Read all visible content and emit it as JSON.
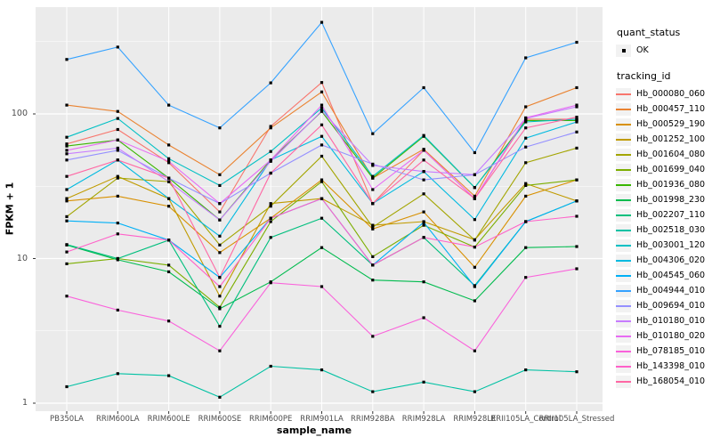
{
  "figure": {
    "background": "#FFFFFF",
    "panel_bg": "#EBEBEB",
    "grid_color": "#FFFFFF",
    "axis_text_color": "#4D4D4D",
    "tick_mark_color": "#333333",
    "point_color": "#000000"
  },
  "axes": {
    "x_title": "sample_name",
    "y_title": "FPKM + 1",
    "y_tick_labels": [
      "1",
      "10",
      "100"
    ],
    "y_tick_values": [
      1,
      10,
      100
    ],
    "y_minor_values": [
      3.1623,
      31.623,
      316.23
    ]
  },
  "legend": {
    "quant_title": "quant_status",
    "quant_item_label": "OK",
    "tracking_title": "tracking_id",
    "key_fill": "#F2F2F2"
  },
  "chart_data": {
    "type": "line",
    "title": "",
    "xlabel": "sample_name",
    "ylabel": "FPKM + 1",
    "y_scale": "log10",
    "ylim": [
      0.92,
      550
    ],
    "grid": true,
    "legend_position": "right",
    "point_shape": "small black square (quant_status = OK at every point)",
    "categories": [
      "PB350LA",
      "RRIM600LA",
      "RRIM600LE",
      "RRIM600SE",
      "RRIM600PE",
      "RRIM901LA",
      "RRIM928BA",
      "RRIM928LA",
      "RRIM928LE",
      "RRII105LA_Control",
      "RRII105LA_Stressed"
    ],
    "series": [
      {
        "name": "Hb_000080_060",
        "color": "#F8766D",
        "values": [
          62,
          78,
          46,
          21,
          82,
          165,
          24,
          56,
          26,
          92,
          92
        ]
      },
      {
        "name": "Hb_000457_110",
        "color": "#EA8331",
        "values": [
          115,
          104,
          61,
          38,
          80,
          142,
          36,
          57,
          27,
          112,
          152
        ]
      },
      {
        "name": "Hb_000529_190",
        "color": "#D89000",
        "values": [
          25,
          27,
          23,
          11,
          19,
          35,
          16,
          21,
          8.7,
          27,
          35
        ]
      },
      {
        "name": "Hb_001252_100",
        "color": "#C09B00",
        "values": [
          26,
          37,
          26,
          5.5,
          24,
          26,
          17,
          18,
          13.5,
          33,
          25
        ]
      },
      {
        "name": "Hb_001604_080",
        "color": "#A3A500",
        "values": [
          19.5,
          36,
          34,
          12.4,
          23,
          51,
          16.5,
          28,
          13.4,
          46,
          58
        ]
      },
      {
        "name": "Hb_001699_040",
        "color": "#7CAE00",
        "values": [
          9.2,
          10,
          9.0,
          4.6,
          18,
          34,
          10.3,
          17,
          12,
          32,
          35
        ]
      },
      {
        "name": "Hb_001936_080",
        "color": "#39B600",
        "values": [
          60,
          66,
          36,
          18.5,
          48,
          104,
          36,
          70,
          31,
          90,
          90
        ]
      },
      {
        "name": "Hb_001998_230",
        "color": "#00BB4E",
        "values": [
          12.4,
          9.8,
          8.1,
          4.5,
          6.9,
          11.9,
          7.1,
          6.9,
          5.1,
          11.9,
          12.1
        ]
      },
      {
        "name": "Hb_002207_110",
        "color": "#00BF7D",
        "values": [
          12.5,
          10,
          13.4,
          3.4,
          14,
          19,
          9.0,
          14,
          6.5,
          18,
          25
        ]
      },
      {
        "name": "Hb_002518_030",
        "color": "#00C1A3",
        "values": [
          1.3,
          1.6,
          1.55,
          1.1,
          1.8,
          1.7,
          1.2,
          1.4,
          1.2,
          1.7,
          1.65
        ]
      },
      {
        "name": "Hb_003001_120",
        "color": "#00C0C4",
        "values": [
          69,
          93,
          49,
          32,
          55,
          110,
          37,
          71,
          31,
          88,
          92
        ]
      },
      {
        "name": "Hb_004306_020",
        "color": "#00BAE0",
        "values": [
          30,
          48,
          26,
          14.3,
          48,
          70,
          24,
          40,
          18.6,
          68,
          88
        ]
      },
      {
        "name": "Hb_004545_060",
        "color": "#00B0F6",
        "values": [
          18.2,
          17.6,
          13.4,
          7.4,
          19,
          26,
          9.0,
          17.8,
          6.4,
          18,
          25
        ]
      },
      {
        "name": "Hb_004944_010",
        "color": "#35A2FF",
        "values": [
          238,
          290,
          115,
          80,
          164,
          430,
          73,
          152,
          54,
          244,
          313
        ]
      },
      {
        "name": "Hb_009694_010",
        "color": "#9590FF",
        "values": [
          48,
          56,
          36,
          24,
          39,
          61,
          45,
          35,
          38,
          59,
          75
        ]
      },
      {
        "name": "Hb_010180_010",
        "color": "#C77CFF",
        "values": [
          53,
          58,
          34,
          18.5,
          47,
          105,
          44,
          40,
          38,
          93,
          112
        ]
      },
      {
        "name": "Hb_010180_020",
        "color": "#E76BF3",
        "values": [
          56,
          66,
          47,
          24,
          48,
          115,
          30,
          56,
          26,
          94,
          115
        ]
      },
      {
        "name": "Hb_078185_010",
        "color": "#FA62DB",
        "values": [
          5.5,
          4.4,
          3.7,
          2.3,
          6.8,
          6.4,
          2.9,
          3.9,
          2.3,
          7.4,
          8.5
        ]
      },
      {
        "name": "Hb_143398_010",
        "color": "#FF61C9",
        "values": [
          11.1,
          14.8,
          13.4,
          6.4,
          19,
          26,
          9.0,
          14,
          12,
          18,
          19.6
        ]
      },
      {
        "name": "Hb_168054_010",
        "color": "#FF67A4",
        "values": [
          37,
          48,
          36,
          7.4,
          39,
          84,
          24,
          48,
          26,
          80,
          95
        ]
      }
    ]
  }
}
